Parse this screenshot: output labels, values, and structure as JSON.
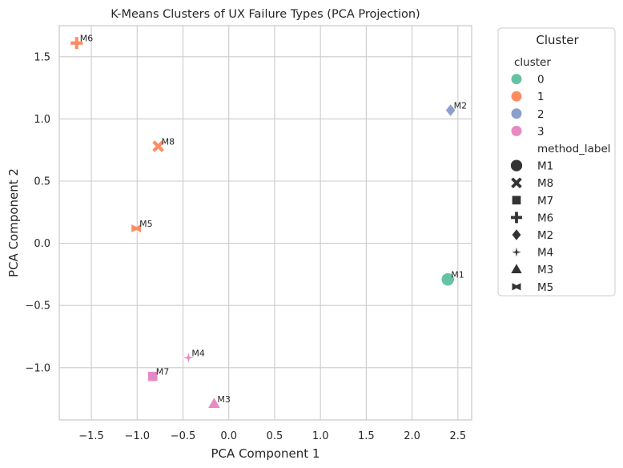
{
  "chart_data": {
    "type": "scatter",
    "title": "K-Means Clusters of UX Failure Types (PCA Projection)",
    "xlabel": "PCA Component 1",
    "ylabel": "PCA Component 2",
    "xlim": [
      -1.85,
      2.65
    ],
    "ylim": [
      -1.42,
      1.75
    ],
    "xticks": [
      -1.5,
      -1.0,
      -0.5,
      0.0,
      0.5,
      1.0,
      1.5,
      2.0,
      2.5
    ],
    "xtick_labels": [
      "−1.5",
      "−1.0",
      "−0.5",
      "0.0",
      "0.5",
      "1.0",
      "1.5",
      "2.0",
      "2.5"
    ],
    "yticks": [
      -1.0,
      -0.5,
      0.0,
      0.5,
      1.0,
      1.5
    ],
    "ytick_labels": [
      "−1.0",
      "−0.5",
      "0.0",
      "0.5",
      "1.0",
      "1.5"
    ],
    "grid": true,
    "legend_placement": "outside-right",
    "points": [
      {
        "label": "M6",
        "x": -1.66,
        "y": 1.61,
        "cluster": "1",
        "marker": "plus"
      },
      {
        "label": "M2",
        "x": 2.42,
        "y": 1.07,
        "cluster": "2",
        "marker": "diamond"
      },
      {
        "label": "M8",
        "x": -0.77,
        "y": 0.78,
        "cluster": "1",
        "marker": "x"
      },
      {
        "label": "M5",
        "x": -1.01,
        "y": 0.12,
        "cluster": "1",
        "marker": "bowtie"
      },
      {
        "label": "M1",
        "x": 2.39,
        "y": -0.29,
        "cluster": "0",
        "marker": "circle"
      },
      {
        "label": "M4",
        "x": -0.44,
        "y": -0.92,
        "cluster": "3",
        "marker": "star4"
      },
      {
        "label": "M7",
        "x": -0.83,
        "y": -1.07,
        "cluster": "3",
        "marker": "square"
      },
      {
        "label": "M3",
        "x": -0.16,
        "y": -1.29,
        "cluster": "3",
        "marker": "triangle"
      }
    ],
    "legend": {
      "title": "Cluster",
      "hue_title": "cluster",
      "hue_entries": [
        {
          "label": "0",
          "color": "#66c2a5"
        },
        {
          "label": "1",
          "color": "#fc8d62"
        },
        {
          "label": "2",
          "color": "#8da0cb"
        },
        {
          "label": "3",
          "color": "#e78ac3"
        }
      ],
      "style_title": "method_label",
      "style_entries": [
        {
          "label": "M1",
          "marker": "circle"
        },
        {
          "label": "M8",
          "marker": "x"
        },
        {
          "label": "M7",
          "marker": "square"
        },
        {
          "label": "M6",
          "marker": "plus"
        },
        {
          "label": "M2",
          "marker": "diamond"
        },
        {
          "label": "M4",
          "marker": "star4"
        },
        {
          "label": "M3",
          "marker": "triangle"
        },
        {
          "label": "M5",
          "marker": "bowtie"
        }
      ]
    },
    "colors": {
      "grid": "#cccccc",
      "text": "#262626",
      "legend_marker": "#333333"
    }
  }
}
